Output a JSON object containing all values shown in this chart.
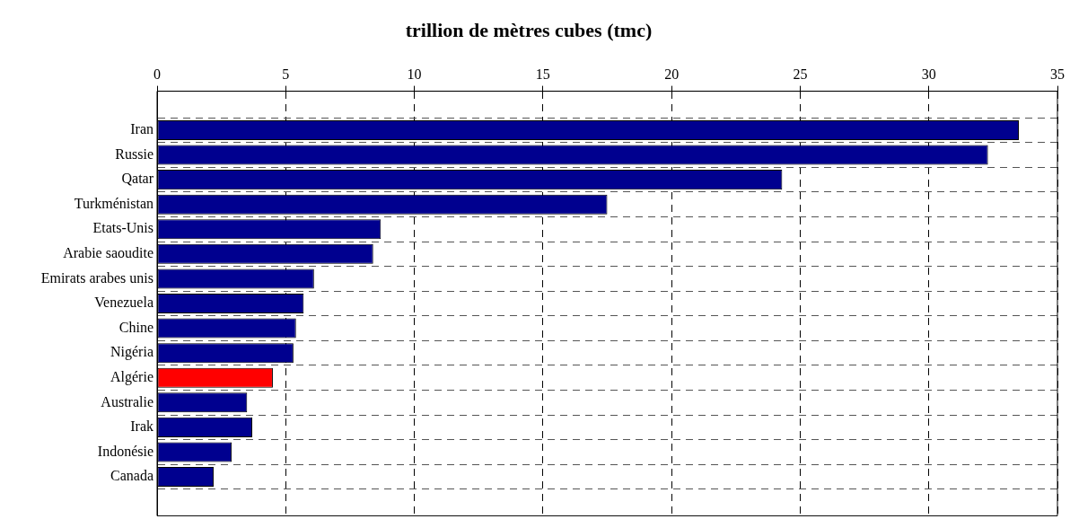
{
  "chart_data": {
    "type": "bar",
    "orientation": "horizontal",
    "title": "trillion de mètres cubes (tmc)",
    "categories": [
      "Iran",
      "Russie",
      "Qatar",
      "Turkménistan",
      "Etats-Unis",
      "Arabie saoudite",
      "Emirats arabes unis",
      "Venezuela",
      "Chine",
      "Nigéria",
      "Algérie",
      "Australie",
      "Irak",
      "Indonésie",
      "Canada"
    ],
    "values": [
      33.5,
      32.3,
      24.3,
      17.5,
      8.7,
      8.4,
      6.1,
      5.7,
      5.4,
      5.3,
      4.5,
      3.5,
      3.7,
      2.9,
      2.2
    ],
    "colors": [
      "#00008f",
      "#00008f",
      "#00008f",
      "#00008f",
      "#00008f",
      "#00008f",
      "#00008f",
      "#00008f",
      "#00008f",
      "#00008f",
      "#ff0000",
      "#00008f",
      "#00008f",
      "#00008f",
      "#00008f"
    ],
    "xlim": [
      0,
      35
    ],
    "xticks": [
      0,
      5,
      10,
      15,
      20,
      25,
      30,
      35
    ],
    "grid": true,
    "legend": false
  }
}
